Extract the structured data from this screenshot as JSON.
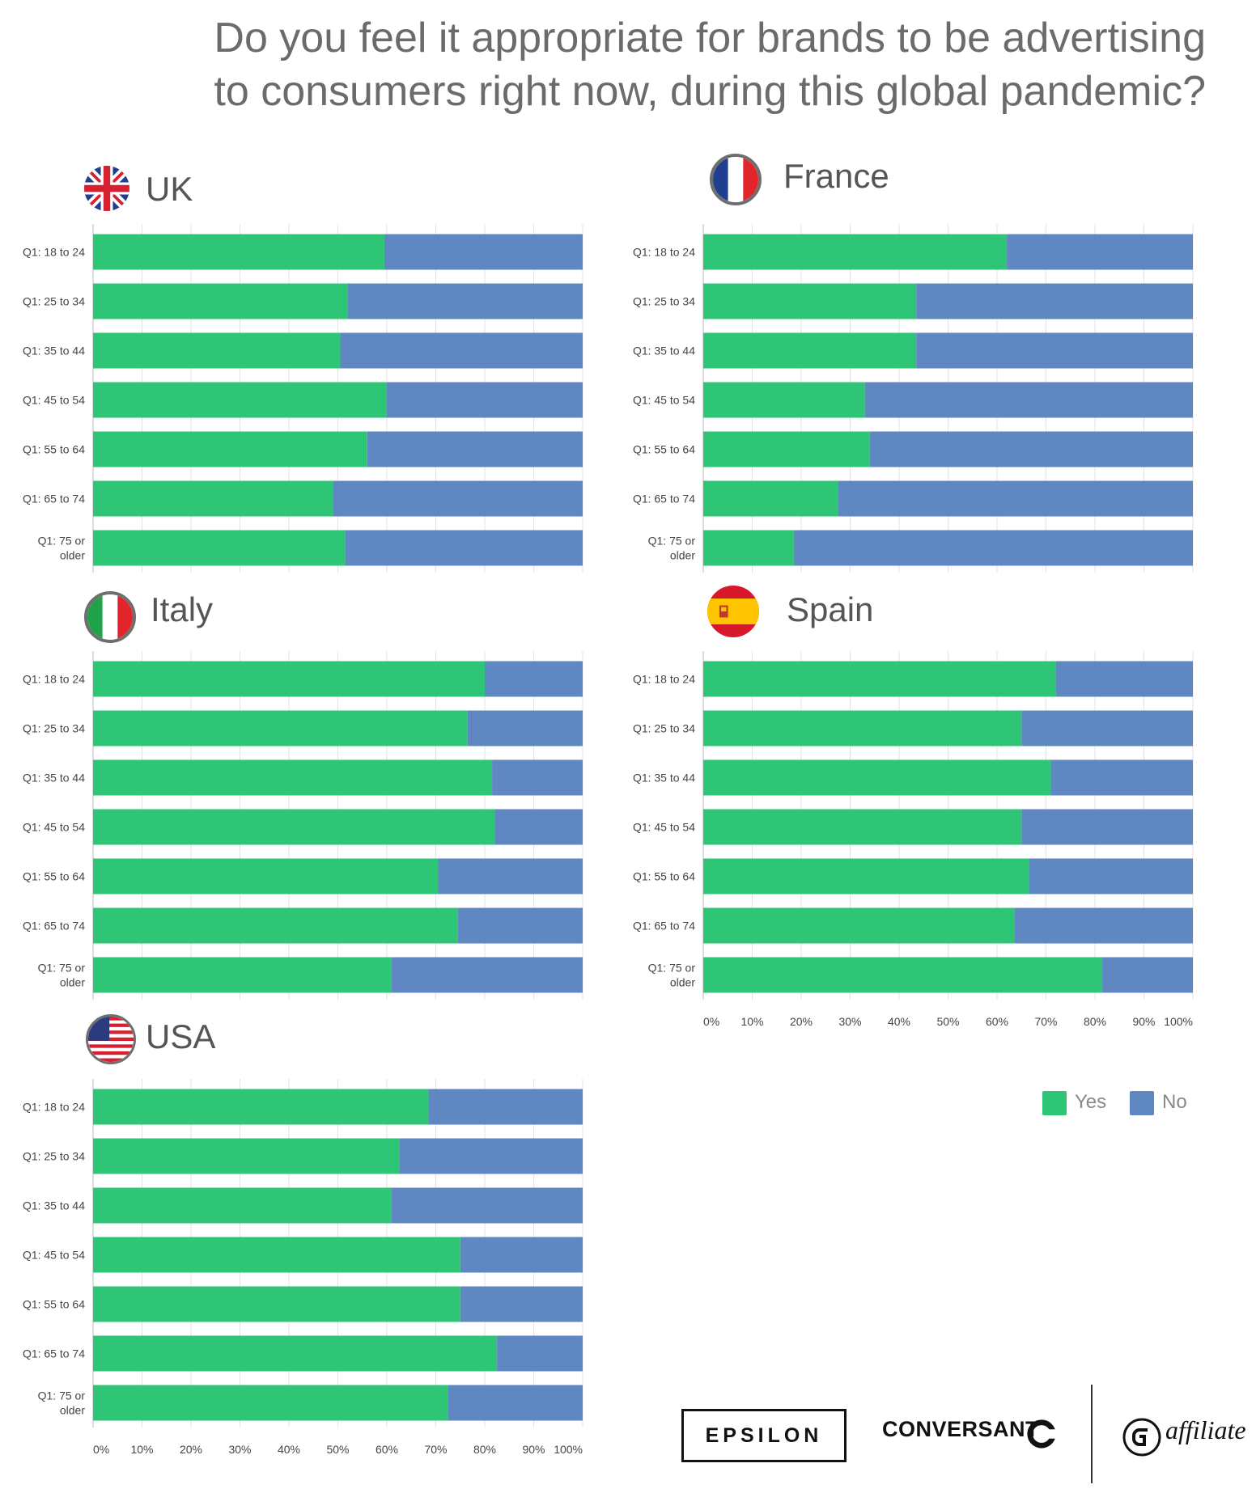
{
  "title": "Do you feel it appropriate for brands to be advertising to consumers right now, during this global pandemic?",
  "title_line1": "Do you feel it appropriate for brands to be advertising",
  "title_line2": "to consumers right now, during this global pandemic?",
  "colors": {
    "yes": "#2ec577",
    "no": "#5f87c1",
    "grid": "#e3e3e3",
    "axis_text": "#444444"
  },
  "legend": {
    "yes_label": "Yes",
    "no_label": "No"
  },
  "logos": {
    "epsilon": "EPSILON",
    "conversant": "CONVERSANT",
    "affiliate": "affiliate"
  },
  "chart_data": [
    {
      "type": "bar",
      "orientation": "horizontal",
      "stacked": true,
      "title": "UK",
      "categories": [
        "Q1: 18 to 24",
        "Q1: 25 to 34",
        "Q1: 35 to 44",
        "Q1: 45 to 54",
        "Q1: 55 to 64",
        "Q1: 65 to 74",
        "Q1: 75 or older"
      ],
      "series": [
        {
          "name": "Yes",
          "values": [
            59.5,
            52,
            50.5,
            60,
            56,
            49,
            51.5
          ]
        },
        {
          "name": "No",
          "values": [
            40.5,
            48,
            49.5,
            40,
            44,
            51,
            48.5
          ]
        }
      ],
      "xlim": [
        0,
        100
      ],
      "grid": true
    },
    {
      "type": "bar",
      "orientation": "horizontal",
      "stacked": true,
      "title": "France",
      "categories": [
        "Q1: 18 to 24",
        "Q1: 25 to 34",
        "Q1: 35 to 44",
        "Q1: 45 to 54",
        "Q1: 55 to 64",
        "Q1: 65 to 74",
        "Q1: 75 or older"
      ],
      "series": [
        {
          "name": "Yes",
          "values": [
            62,
            43.5,
            43.5,
            33,
            34,
            27.5,
            18.5
          ]
        },
        {
          "name": "No",
          "values": [
            38,
            56.5,
            56.5,
            67,
            66,
            72.5,
            81.5
          ]
        }
      ],
      "xlim": [
        0,
        100
      ],
      "grid": true
    },
    {
      "type": "bar",
      "orientation": "horizontal",
      "stacked": true,
      "title": "Italy",
      "categories": [
        "Q1: 18 to 24",
        "Q1: 25 to 34",
        "Q1: 35 to 44",
        "Q1: 45 to 54",
        "Q1: 55 to 64",
        "Q1: 65 to 74",
        "Q1: 75 or older"
      ],
      "series": [
        {
          "name": "Yes",
          "values": [
            80,
            76.5,
            81.5,
            82,
            70.5,
            74.5,
            61
          ]
        },
        {
          "name": "No",
          "values": [
            20,
            23.5,
            18.5,
            18,
            29.5,
            25.5,
            39
          ]
        }
      ],
      "xlim": [
        0,
        100
      ],
      "grid": true
    },
    {
      "type": "bar",
      "orientation": "horizontal",
      "stacked": true,
      "title": "Spain",
      "categories": [
        "Q1: 18 to 24",
        "Q1: 25 to 34",
        "Q1: 35 to 44",
        "Q1: 45 to 54",
        "Q1: 55 to 64",
        "Q1: 65 to 74",
        "Q1: 75 or older"
      ],
      "series": [
        {
          "name": "Yes",
          "values": [
            72,
            65,
            71,
            65,
            66.5,
            63.5,
            81.5
          ]
        },
        {
          "name": "No",
          "values": [
            28,
            35,
            29,
            35,
            33.5,
            36.5,
            18.5
          ]
        }
      ],
      "xlim": [
        0,
        100
      ],
      "grid": true,
      "x_ticks": [
        "0%",
        "10%",
        "20%",
        "30%",
        "40%",
        "50%",
        "60%",
        "70%",
        "80%",
        "90%",
        "100%"
      ]
    },
    {
      "type": "bar",
      "orientation": "horizontal",
      "stacked": true,
      "title": "USA",
      "categories": [
        "Q1: 18 to 24",
        "Q1: 25 to 34",
        "Q1: 35 to 44",
        "Q1: 45 to 54",
        "Q1: 55 to 64",
        "Q1: 65 to 74",
        "Q1: 75 or older"
      ],
      "series": [
        {
          "name": "Yes",
          "values": [
            68.5,
            62.5,
            61,
            75,
            75,
            82.5,
            72.5
          ]
        },
        {
          "name": "No",
          "values": [
            31.5,
            37.5,
            39,
            25,
            25,
            17.5,
            27.5
          ]
        }
      ],
      "xlim": [
        0,
        100
      ],
      "grid": true,
      "x_ticks": [
        "0%",
        "10%",
        "20%",
        "30%",
        "40%",
        "50%",
        "60%",
        "70%",
        "80%",
        "90%",
        "100%"
      ]
    }
  ]
}
